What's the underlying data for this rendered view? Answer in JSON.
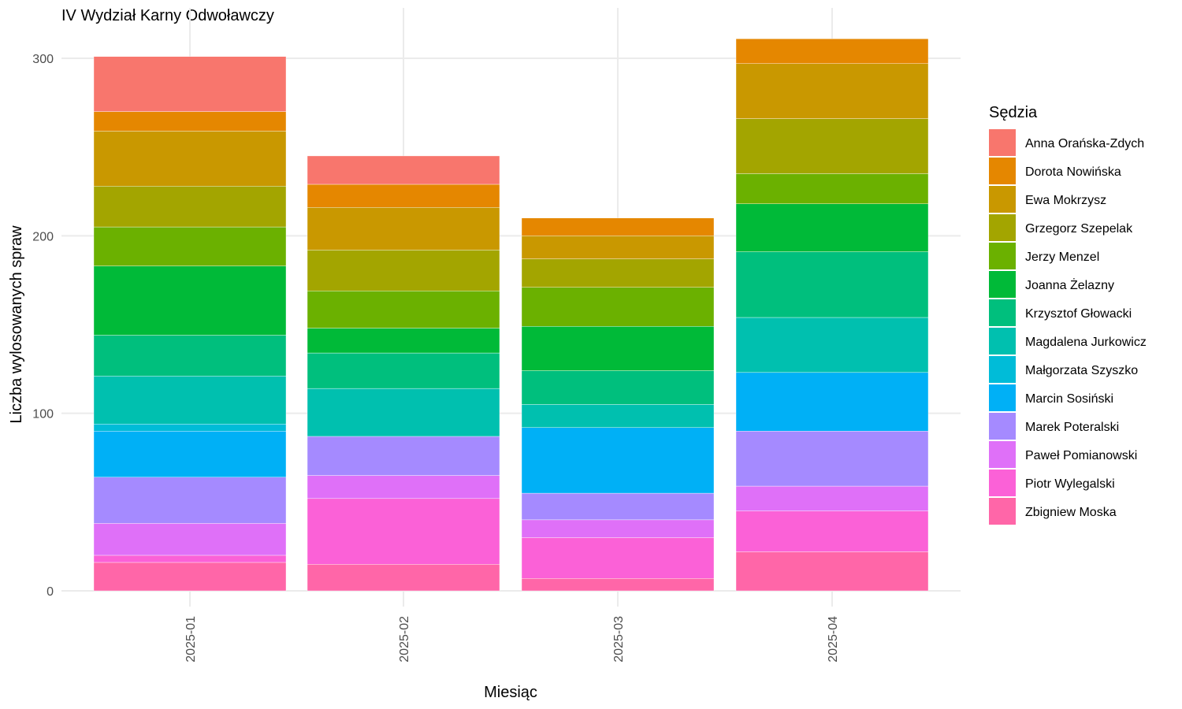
{
  "chart_data": {
    "type": "bar",
    "stacked": true,
    "title": "IV Wydział Karny Odwoławczy",
    "xlabel": "Miesiąc",
    "ylabel": "Liczba wylosowanych spraw",
    "categories": [
      "2025-01",
      "2025-02",
      "2025-03",
      "2025-04"
    ],
    "ylim": [
      0,
      312
    ],
    "y_ticks": [
      0,
      100,
      200,
      300
    ],
    "grid": true,
    "legend_title": "Sędzia",
    "legend_position": "right",
    "series": [
      {
        "name": "Anna Orańska-Zdych",
        "color": "#F8766D",
        "values": [
          31,
          16,
          0,
          0
        ]
      },
      {
        "name": "Dorota Nowińska",
        "color": "#E58700",
        "values": [
          11,
          13,
          10,
          14
        ]
      },
      {
        "name": "Ewa Mokrzysz",
        "color": "#C99800",
        "values": [
          31,
          24,
          13,
          31
        ]
      },
      {
        "name": "Grzegorz Szepelak",
        "color": "#A3A500",
        "values": [
          23,
          23,
          16,
          31
        ]
      },
      {
        "name": "Jerzy Menzel",
        "color": "#6BB100",
        "values": [
          22,
          21,
          22,
          17
        ]
      },
      {
        "name": "Joanna Żelazny",
        "color": "#00BA38",
        "values": [
          39,
          14,
          25,
          27
        ]
      },
      {
        "name": "Krzysztof Głowacki",
        "color": "#00BF7D",
        "values": [
          23,
          20,
          19,
          37
        ]
      },
      {
        "name": "Magdalena Jurkowicz",
        "color": "#00C0AF",
        "values": [
          27,
          27,
          13,
          31
        ]
      },
      {
        "name": "Małgorzata Szyszko",
        "color": "#00BCD8",
        "values": [
          4,
          0,
          0,
          0
        ]
      },
      {
        "name": "Marcin Sosiński",
        "color": "#00B0F6",
        "values": [
          26,
          0,
          37,
          33
        ]
      },
      {
        "name": "Marek Poteralski",
        "color": "#A58AFF",
        "values": [
          26,
          22,
          15,
          31
        ]
      },
      {
        "name": "Paweł Pomianowski",
        "color": "#DF70F8",
        "values": [
          18,
          13,
          10,
          14
        ]
      },
      {
        "name": "Piotr Wylegalski",
        "color": "#FB61D7",
        "values": [
          4,
          37,
          23,
          23
        ]
      },
      {
        "name": "Zbigniew Moska",
        "color": "#FF66A8",
        "values": [
          16,
          15,
          7,
          22
        ]
      }
    ]
  }
}
